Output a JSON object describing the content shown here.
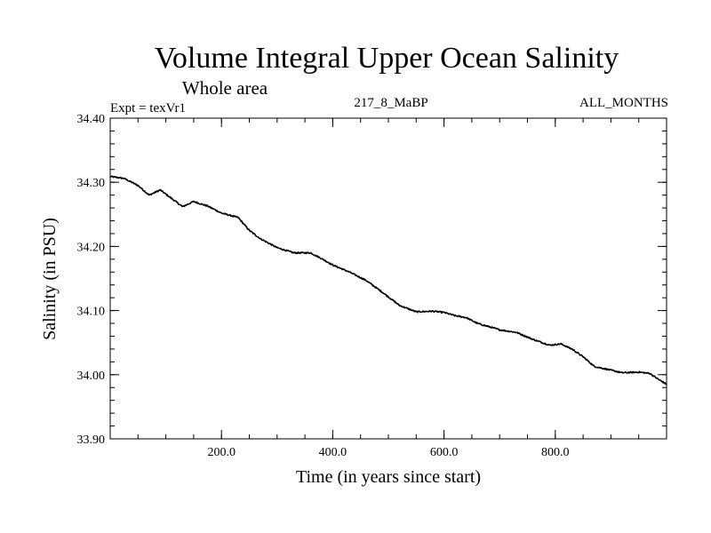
{
  "chart_data": {
    "type": "line",
    "title": "Volume Integral Upper Ocean Salinity",
    "subtitle": "Whole area",
    "annotations": {
      "experiment": "Expt = texVr1",
      "run": "217_8_MaBP",
      "period": "ALL_MONTHS"
    },
    "xlabel": "Time (in years since start)",
    "ylabel": "Salinity (in PSU)",
    "xlim": [
      0,
      1000
    ],
    "ylim": [
      33.9,
      34.4
    ],
    "x_ticks": [
      {
        "value": 200,
        "label": "200.0"
      },
      {
        "value": 400,
        "label": "400.0"
      },
      {
        "value": 600,
        "label": "600.0"
      },
      {
        "value": 800,
        "label": "800.0"
      }
    ],
    "y_ticks": [
      {
        "value": 33.9,
        "label": "33.90"
      },
      {
        "value": 34.0,
        "label": "34.00"
      },
      {
        "value": 34.1,
        "label": "34.10"
      },
      {
        "value": 34.2,
        "label": "34.20"
      },
      {
        "value": 34.3,
        "label": "34.30"
      },
      {
        "value": 34.4,
        "label": "34.40"
      }
    ],
    "grid": false,
    "series": [
      {
        "name": "Salinity",
        "x": [
          0,
          25,
          50,
          70,
          90,
          110,
          130,
          150,
          175,
          200,
          230,
          250,
          270,
          300,
          330,
          360,
          380,
          400,
          430,
          460,
          490,
          520,
          550,
          580,
          600,
          620,
          640,
          660,
          680,
          700,
          730,
          760,
          790,
          810,
          830,
          850,
          870,
          890,
          920,
          950,
          970,
          985,
          1000
        ],
        "values": [
          34.309,
          34.306,
          34.295,
          34.28,
          34.288,
          34.275,
          34.262,
          34.27,
          34.263,
          34.252,
          34.245,
          34.225,
          34.212,
          34.198,
          34.19,
          34.19,
          34.181,
          34.171,
          34.16,
          34.147,
          34.128,
          34.108,
          34.098,
          34.099,
          34.097,
          34.092,
          34.089,
          34.08,
          34.075,
          34.07,
          34.066,
          34.055,
          34.046,
          34.048,
          34.04,
          34.028,
          34.013,
          34.009,
          34.003,
          34.004,
          34.002,
          33.993,
          33.985
        ]
      }
    ]
  }
}
